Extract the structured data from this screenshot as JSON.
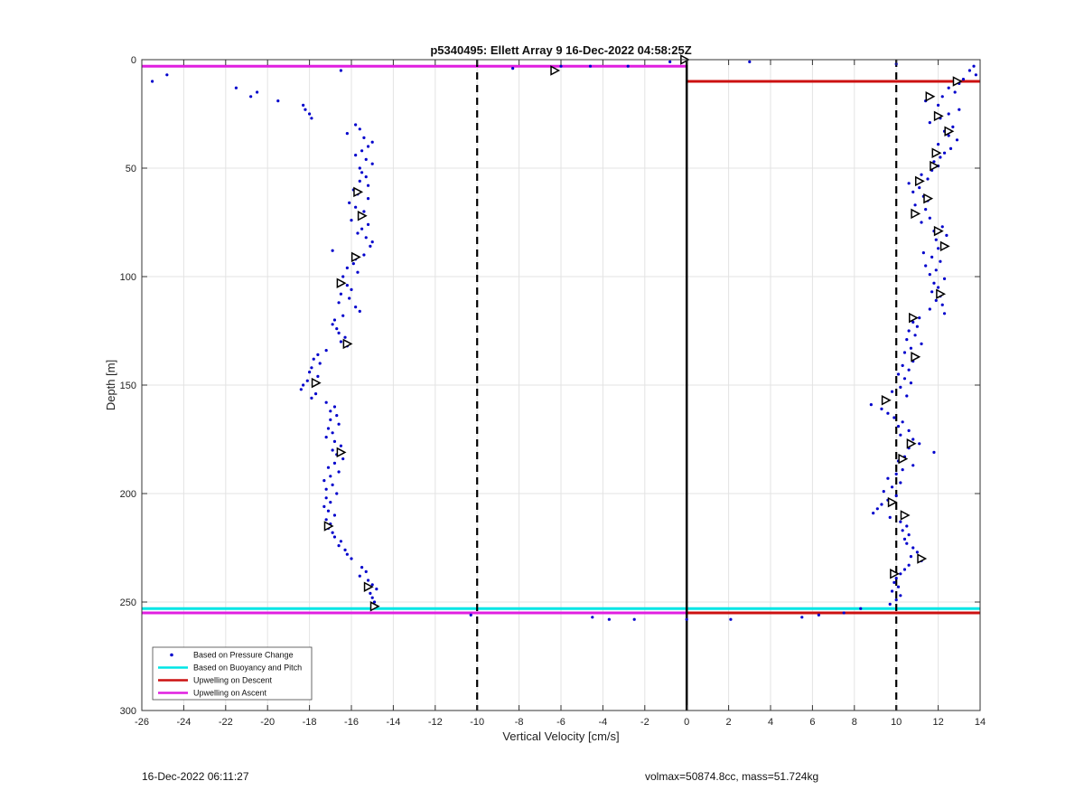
{
  "chart_data": {
    "type": "scatter",
    "title": "p5340495: Ellett Array 9 16-Dec-2022 04:58:25Z",
    "xlabel": "Vertical Velocity [cm/s]",
    "ylabel": "Depth [m]",
    "xlim": [
      -26,
      14
    ],
    "ylim": [
      0,
      300
    ],
    "y_reversed": true,
    "grid": true,
    "legend_position": "bottom-left",
    "x_ticks": [
      -26,
      -24,
      -22,
      -20,
      -18,
      -16,
      -14,
      -12,
      -10,
      -8,
      -6,
      -4,
      -2,
      0,
      2,
      4,
      6,
      8,
      10,
      12,
      14
    ],
    "y_ticks": [
      0,
      50,
      100,
      150,
      200,
      250,
      300
    ],
    "reference_lines": {
      "dashed_x": [
        -10,
        10
      ],
      "solid_x": [
        0
      ]
    },
    "series": [
      {
        "name": "Based on Pressure Change",
        "marker": "dot",
        "color": "#0000cc",
        "descent_points": [
          [
            -25.5,
            10
          ],
          [
            -24.8,
            7
          ],
          [
            -16.5,
            5
          ],
          [
            -21.5,
            13
          ],
          [
            -20.5,
            15
          ],
          [
            -20.8,
            17
          ],
          [
            -19.5,
            19
          ],
          [
            -18.3,
            21
          ],
          [
            -18.2,
            23
          ],
          [
            -18.0,
            25
          ],
          [
            -17.9,
            27
          ],
          [
            -15.8,
            30
          ],
          [
            -15.6,
            32
          ],
          [
            -16.2,
            34
          ],
          [
            -15.4,
            36
          ],
          [
            -15.0,
            38
          ],
          [
            -15.2,
            40
          ],
          [
            -15.5,
            42
          ],
          [
            -15.8,
            44
          ],
          [
            -15.3,
            46
          ],
          [
            -15.0,
            48
          ],
          [
            -15.6,
            50
          ],
          [
            -15.5,
            52
          ],
          [
            -15.3,
            54
          ],
          [
            -15.6,
            56
          ],
          [
            -15.2,
            58
          ],
          [
            -15.9,
            60
          ],
          [
            -15.7,
            62
          ],
          [
            -15.2,
            64
          ],
          [
            -16.1,
            66
          ],
          [
            -15.8,
            68
          ],
          [
            -15.4,
            70
          ],
          [
            -15.6,
            72
          ],
          [
            -16.0,
            74
          ],
          [
            -15.2,
            76
          ],
          [
            -15.5,
            78
          ],
          [
            -15.7,
            80
          ],
          [
            -15.3,
            82
          ],
          [
            -15.0,
            84
          ],
          [
            -15.1,
            86
          ],
          [
            -16.9,
            88
          ],
          [
            -15.4,
            90
          ],
          [
            -15.8,
            92
          ],
          [
            -15.9,
            94
          ],
          [
            -16.2,
            96
          ],
          [
            -15.7,
            98
          ],
          [
            -16.4,
            100
          ],
          [
            -16.6,
            102
          ],
          [
            -16.2,
            104
          ],
          [
            -16.0,
            106
          ],
          [
            -16.5,
            108
          ],
          [
            -16.1,
            110
          ],
          [
            -16.6,
            112
          ],
          [
            -15.8,
            114
          ],
          [
            -15.6,
            116
          ],
          [
            -16.4,
            118
          ],
          [
            -16.8,
            120
          ],
          [
            -16.9,
            122
          ],
          [
            -16.7,
            124
          ],
          [
            -16.6,
            126
          ],
          [
            -16.3,
            128
          ],
          [
            -16.5,
            130
          ],
          [
            -16.2,
            132
          ],
          [
            -17.2,
            134
          ],
          [
            -17.6,
            136
          ],
          [
            -17.8,
            138
          ],
          [
            -17.5,
            140
          ],
          [
            -17.9,
            142
          ],
          [
            -18.0,
            144
          ],
          [
            -17.6,
            146
          ],
          [
            -18.1,
            148
          ],
          [
            -18.3,
            150
          ],
          [
            -18.4,
            152
          ],
          [
            -17.7,
            154
          ],
          [
            -17.9,
            156
          ],
          [
            -17.2,
            158
          ],
          [
            -16.8,
            160
          ],
          [
            -17.0,
            162
          ],
          [
            -16.7,
            164
          ],
          [
            -17.0,
            166
          ],
          [
            -16.6,
            168
          ],
          [
            -17.1,
            170
          ],
          [
            -16.9,
            172
          ],
          [
            -17.2,
            174
          ],
          [
            -16.8,
            176
          ],
          [
            -16.5,
            178
          ],
          [
            -16.9,
            180
          ],
          [
            -16.7,
            182
          ],
          [
            -16.4,
            184
          ],
          [
            -16.8,
            186
          ],
          [
            -17.1,
            188
          ],
          [
            -16.6,
            190
          ],
          [
            -17.0,
            192
          ],
          [
            -17.3,
            194
          ],
          [
            -16.9,
            196
          ],
          [
            -17.2,
            198
          ],
          [
            -16.7,
            200
          ],
          [
            -17.2,
            202
          ],
          [
            -17.0,
            204
          ],
          [
            -17.3,
            206
          ],
          [
            -17.1,
            208
          ],
          [
            -16.8,
            210
          ],
          [
            -17.2,
            212
          ],
          [
            -17.0,
            214
          ],
          [
            -17.1,
            216
          ],
          [
            -16.9,
            218
          ],
          [
            -16.8,
            220
          ],
          [
            -16.5,
            222
          ],
          [
            -16.6,
            224
          ],
          [
            -16.3,
            226
          ],
          [
            -16.2,
            228
          ],
          [
            -16.0,
            230
          ],
          [
            -15.5,
            234
          ],
          [
            -15.3,
            236
          ],
          [
            -15.6,
            238
          ],
          [
            -15.2,
            240
          ],
          [
            -15.0,
            242
          ],
          [
            -14.8,
            244
          ],
          [
            -15.1,
            246
          ],
          [
            -15.0,
            248
          ],
          [
            -14.9,
            250
          ],
          [
            -14.8,
            252
          ],
          [
            -10.3,
            256
          ],
          [
            -4.5,
            257
          ],
          [
            -3.7,
            258
          ],
          [
            -2.5,
            258
          ],
          [
            0.0,
            258
          ],
          [
            -8.3,
            4
          ],
          [
            -6.0,
            3
          ],
          [
            -4.6,
            3
          ],
          [
            -2.8,
            3
          ],
          [
            -0.8,
            1
          ],
          [
            -6.3,
            5
          ],
          [
            -0.2,
            0
          ]
        ],
        "ascent_points": [
          [
            10.0,
            2
          ],
          [
            3.0,
            1
          ],
          [
            13.7,
            3
          ],
          [
            13.5,
            5
          ],
          [
            13.8,
            7
          ],
          [
            13.2,
            9
          ],
          [
            13.0,
            11
          ],
          [
            12.5,
            13
          ],
          [
            12.8,
            15
          ],
          [
            12.2,
            17
          ],
          [
            11.4,
            19
          ],
          [
            12.0,
            21
          ],
          [
            13.0,
            23
          ],
          [
            12.5,
            25
          ],
          [
            12.1,
            27
          ],
          [
            11.6,
            29
          ],
          [
            12.7,
            31
          ],
          [
            12.3,
            33
          ],
          [
            12.5,
            35
          ],
          [
            12.9,
            37
          ],
          [
            12.0,
            39
          ],
          [
            12.6,
            41
          ],
          [
            12.3,
            43
          ],
          [
            12.1,
            45
          ],
          [
            11.8,
            47
          ],
          [
            12.0,
            49
          ],
          [
            11.7,
            51
          ],
          [
            11.2,
            53
          ],
          [
            11.5,
            55
          ],
          [
            10.6,
            57
          ],
          [
            11.1,
            59
          ],
          [
            10.8,
            61
          ],
          [
            11.3,
            63
          ],
          [
            11.5,
            65
          ],
          [
            10.9,
            67
          ],
          [
            11.4,
            69
          ],
          [
            10.8,
            71
          ],
          [
            11.6,
            73
          ],
          [
            11.2,
            75
          ],
          [
            12.2,
            77
          ],
          [
            11.8,
            79
          ],
          [
            12.4,
            81
          ],
          [
            11.9,
            83
          ],
          [
            12.2,
            85
          ],
          [
            12.0,
            87
          ],
          [
            11.3,
            89
          ],
          [
            11.7,
            91
          ],
          [
            12.1,
            93
          ],
          [
            11.4,
            95
          ],
          [
            11.9,
            97
          ],
          [
            11.6,
            99
          ],
          [
            12.3,
            101
          ],
          [
            11.8,
            103
          ],
          [
            12.0,
            105
          ],
          [
            11.7,
            107
          ],
          [
            12.1,
            109
          ],
          [
            11.9,
            111
          ],
          [
            12.2,
            113
          ],
          [
            11.6,
            115
          ],
          [
            12.3,
            117
          ],
          [
            11.1,
            119
          ],
          [
            10.8,
            121
          ],
          [
            11.0,
            123
          ],
          [
            10.6,
            125
          ],
          [
            10.9,
            127
          ],
          [
            10.5,
            129
          ],
          [
            11.2,
            131
          ],
          [
            10.7,
            133
          ],
          [
            10.4,
            135
          ],
          [
            11.0,
            137
          ],
          [
            10.8,
            139
          ],
          [
            10.3,
            141
          ],
          [
            10.6,
            143
          ],
          [
            10.1,
            145
          ],
          [
            10.4,
            147
          ],
          [
            10.7,
            149
          ],
          [
            10.2,
            151
          ],
          [
            9.8,
            153
          ],
          [
            10.5,
            155
          ],
          [
            9.5,
            157
          ],
          [
            8.8,
            159
          ],
          [
            9.3,
            161
          ],
          [
            9.6,
            163
          ],
          [
            9.9,
            165
          ],
          [
            10.3,
            167
          ],
          [
            10.1,
            169
          ],
          [
            10.6,
            171
          ],
          [
            10.2,
            173
          ],
          [
            10.8,
            175
          ],
          [
            11.1,
            177
          ],
          [
            10.6,
            179
          ],
          [
            11.8,
            181
          ],
          [
            10.4,
            183
          ],
          [
            10.1,
            185
          ],
          [
            10.8,
            187
          ],
          [
            10.3,
            189
          ],
          [
            10.0,
            191
          ],
          [
            9.6,
            193
          ],
          [
            10.2,
            195
          ],
          [
            9.8,
            197
          ],
          [
            9.4,
            199
          ],
          [
            10.0,
            201
          ],
          [
            9.6,
            203
          ],
          [
            9.3,
            205
          ],
          [
            9.1,
            207
          ],
          [
            8.9,
            209
          ],
          [
            9.7,
            211
          ],
          [
            10.2,
            213
          ],
          [
            10.5,
            215
          ],
          [
            10.3,
            217
          ],
          [
            10.6,
            219
          ],
          [
            10.4,
            221
          ],
          [
            10.5,
            223
          ],
          [
            10.8,
            225
          ],
          [
            11.0,
            227
          ],
          [
            10.7,
            229
          ],
          [
            11.2,
            231
          ],
          [
            10.6,
            233
          ],
          [
            10.4,
            235
          ],
          [
            10.2,
            237
          ],
          [
            10.0,
            239
          ],
          [
            9.9,
            241
          ],
          [
            10.1,
            243
          ],
          [
            9.8,
            245
          ],
          [
            10.2,
            247
          ],
          [
            10.0,
            249
          ],
          [
            9.7,
            251
          ],
          [
            8.3,
            253
          ],
          [
            7.5,
            255
          ],
          [
            6.3,
            256
          ],
          [
            5.5,
            257
          ],
          [
            2.1,
            258
          ]
        ]
      },
      {
        "name": "Based on Buoyancy and Pitch",
        "type": "line",
        "color": "#00e5e5",
        "levels_m": [
          253
        ]
      },
      {
        "name": "Upwelling on Descent",
        "type": "line",
        "color": "#cc1111",
        "levels_m": [
          10,
          255
        ]
      },
      {
        "name": "Upwelling on Ascent",
        "type": "line",
        "color": "#e01fe0",
        "levels_m": [
          3,
          255
        ]
      }
    ],
    "triangle_markers": [
      [
        -6.3,
        5
      ],
      [
        -0.1,
        0
      ],
      [
        -15.7,
        61
      ],
      [
        -15.5,
        72
      ],
      [
        -15.8,
        91
      ],
      [
        -16.5,
        103
      ],
      [
        -16.2,
        131
      ],
      [
        -17.7,
        149
      ],
      [
        -16.5,
        181
      ],
      [
        -17.1,
        215
      ],
      [
        -15.2,
        243
      ],
      [
        -14.9,
        252
      ],
      [
        12.9,
        10
      ],
      [
        11.6,
        17
      ],
      [
        12.0,
        26
      ],
      [
        12.5,
        33
      ],
      [
        11.9,
        43
      ],
      [
        11.8,
        49
      ],
      [
        11.1,
        56
      ],
      [
        11.5,
        64
      ],
      [
        10.9,
        71
      ],
      [
        12.0,
        79
      ],
      [
        12.3,
        86
      ],
      [
        12.1,
        108
      ],
      [
        10.8,
        119
      ],
      [
        10.9,
        137
      ],
      [
        9.5,
        157
      ],
      [
        10.7,
        177
      ],
      [
        10.3,
        184
      ],
      [
        9.8,
        204
      ],
      [
        10.4,
        210
      ],
      [
        11.2,
        230
      ],
      [
        9.9,
        237
      ]
    ]
  },
  "footer": {
    "timestamp": "16-Dec-2022 06:11:27",
    "info": "volmax=50874.8cc, mass=51.724kg"
  }
}
